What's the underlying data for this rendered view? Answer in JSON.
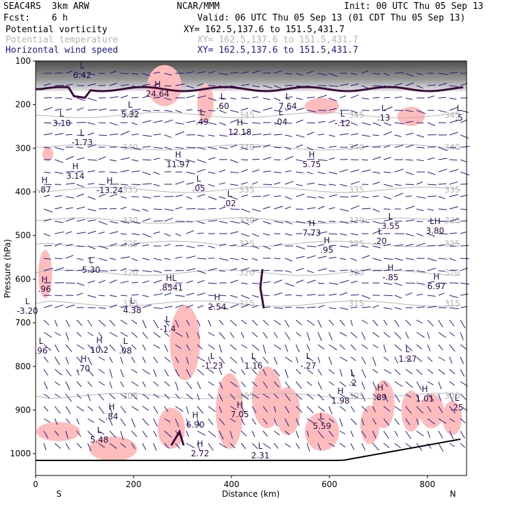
{
  "header": {
    "model": "SEAC4RS  3km ARW",
    "org": "NCAR/MMM",
    "init": "Init: 00 UTC Thu 05 Sep 13",
    "fcst": "Fcst:    6 h",
    "valid": "Valid: 06 UTC Thu 05 Sep 13 (01 CDT Thu 05 Sep 13)",
    "legend": [
      {
        "name": "Potential vorticity",
        "xy": "XY= 162.5,137.6 to 151.5,431.7",
        "color": "#000000"
      },
      {
        "name": "Potential temperature",
        "xy": "XY= 162.5,137.6 to 151.5,431.7",
        "color": "#b4b4b4"
      },
      {
        "name": "Horizontal wind speed",
        "xy": "XY= 162.5,137.6 to 151.5,431.7",
        "color": "#1a1a8c"
      }
    ]
  },
  "chart_data": {
    "type": "cross-section",
    "xlabel": "Distance (km)",
    "ylabel": "Pressure (hPa)",
    "xlim": [
      0,
      880
    ],
    "ylim": [
      1050,
      100
    ],
    "x_ticks": [
      0,
      200,
      400,
      600,
      800
    ],
    "y_ticks": [
      100,
      200,
      300,
      400,
      500,
      600,
      700,
      800,
      900,
      1000
    ],
    "x_end_labels": {
      "left": "S",
      "right": "N"
    },
    "colors": {
      "theta": "#b4b4b4",
      "pv": "#3a0a3a",
      "pvfill": "#ffbcbc",
      "wind": "#1a1a8c",
      "hl": "#2a0a4a"
    },
    "theta_contours": [
      {
        "label": "345",
        "y": 168
      },
      {
        "label": "340",
        "y": 215
      },
      {
        "label": "335",
        "y": 277
      },
      {
        "label": "330",
        "y": 322
      },
      {
        "label": "325",
        "y": 356
      },
      {
        "label": "320",
        "y": 398
      },
      {
        "label": "315",
        "y": 443
      },
      {
        "label": "305",
        "y": 578
      }
    ],
    "extrema": [
      {
        "t": "L",
        "v": "6.42",
        "x": 120,
        "y": 100
      },
      {
        "t": "H",
        "v": "24.64",
        "x": 230,
        "y": 127
      },
      {
        "t": "L",
        "v": "5.32",
        "x": 190,
        "y": 157
      },
      {
        "t": "L",
        "v": "3.10",
        "x": 90,
        "y": 170
      },
      {
        "t": "L",
        "v": ".60",
        "x": 325,
        "y": 145
      },
      {
        "t": "L",
        "v": ".49",
        "x": 295,
        "y": 168
      },
      {
        "t": "L",
        "v": "7.64",
        "x": 420,
        "y": 145
      },
      {
        "t": "L",
        "v": ".04",
        "x": 410,
        "y": 168
      },
      {
        "t": "H",
        "v": "12.18",
        "x": 350,
        "y": 183
      },
      {
        "t": "L",
        "v": "-.12",
        "x": 500,
        "y": 170
      },
      {
        "t": "L",
        "v": ".13",
        "x": 560,
        "y": 162
      },
      {
        "t": "L",
        "v": ".5",
        "x": 670,
        "y": 162
      },
      {
        "t": "L",
        "v": "-1.73",
        "x": 120,
        "y": 198
      },
      {
        "t": "H",
        "v": "11.97",
        "x": 260,
        "y": 230
      },
      {
        "t": "H",
        "v": "5.75",
        "x": 455,
        "y": 230
      },
      {
        "t": "H",
        "v": "3.14",
        "x": 110,
        "y": 247
      },
      {
        "t": "H",
        "v": "-13.24",
        "x": 160,
        "y": 268
      },
      {
        "t": "H",
        "v": ".87",
        "x": 65,
        "y": 267
      },
      {
        "t": "L",
        "v": ".05",
        "x": 290,
        "y": 265
      },
      {
        "t": "L",
        "v": ".02",
        "x": 335,
        "y": 287
      },
      {
        "t": "H",
        "v": "7.73",
        "x": 455,
        "y": 330
      },
      {
        "t": "H",
        "v": ".95",
        "x": 477,
        "y": 355
      },
      {
        "t": "L",
        "v": "3.55",
        "x": 570,
        "y": 320
      },
      {
        "t": "L",
        "v": ".20",
        "x": 555,
        "y": 342
      },
      {
        "t": "LH",
        "v": "3.80",
        "x": 635,
        "y": 327
      },
      {
        "t": "L",
        "v": "5.30",
        "x": 133,
        "y": 384
      },
      {
        "t": "H",
        "v": "-.85",
        "x": 570,
        "y": 395
      },
      {
        "t": "H",
        "v": "6.97",
        "x": 637,
        "y": 408
      },
      {
        "t": "H",
        "v": ".96",
        "x": 65,
        "y": 412
      },
      {
        "t": "HL",
        "v": ".8541",
        "x": 250,
        "y": 410
      },
      {
        "t": "H",
        "v": "2.54",
        "x": 317,
        "y": 438
      },
      {
        "t": "L",
        "v": "4.38",
        "x": 193,
        "y": 443
      },
      {
        "t": "L",
        "v": "-3.20",
        "x": 40,
        "y": 444
      },
      {
        "t": "L",
        "v": "-1.4",
        "x": 245,
        "y": 470
      },
      {
        "t": "H",
        "v": "10.2",
        "x": 145,
        "y": 501
      },
      {
        "t": "L",
        "v": ".08",
        "x": 183,
        "y": 502
      },
      {
        "t": "L",
        "v": ".96",
        "x": 60,
        "y": 502
      },
      {
        "t": "L",
        "v": "1.27",
        "x": 595,
        "y": 514
      },
      {
        "t": "H",
        "v": ".70",
        "x": 122,
        "y": 528
      },
      {
        "t": "L",
        "v": "-1.23",
        "x": 310,
        "y": 524
      },
      {
        "t": "L",
        "v": "1.16",
        "x": 370,
        "y": 524
      },
      {
        "t": "L",
        "v": "-.27",
        "x": 450,
        "y": 524
      },
      {
        "t": "L",
        "v": ".2",
        "x": 515,
        "y": 549
      },
      {
        "t": "H",
        "v": "1.98",
        "x": 497,
        "y": 575
      },
      {
        "t": "H",
        "v": ".89",
        "x": 555,
        "y": 570
      },
      {
        "t": "H",
        "v": "1.01",
        "x": 620,
        "y": 572
      },
      {
        "t": "L",
        "v": ".25",
        "x": 667,
        "y": 585
      },
      {
        "t": "H",
        "v": ".84",
        "x": 163,
        "y": 598
      },
      {
        "t": "H",
        "v": "7.05",
        "x": 350,
        "y": 595
      },
      {
        "t": "H",
        "v": "6.90",
        "x": 285,
        "y": 610
      },
      {
        "t": "L",
        "v": "5.59",
        "x": 470,
        "y": 612
      },
      {
        "t": "L",
        "v": "5.48",
        "x": 145,
        "y": 632
      },
      {
        "t": "H",
        "v": "2.72",
        "x": 292,
        "y": 652
      },
      {
        "t": "L",
        "v": "2.31",
        "x": 380,
        "y": 655
      }
    ]
  }
}
